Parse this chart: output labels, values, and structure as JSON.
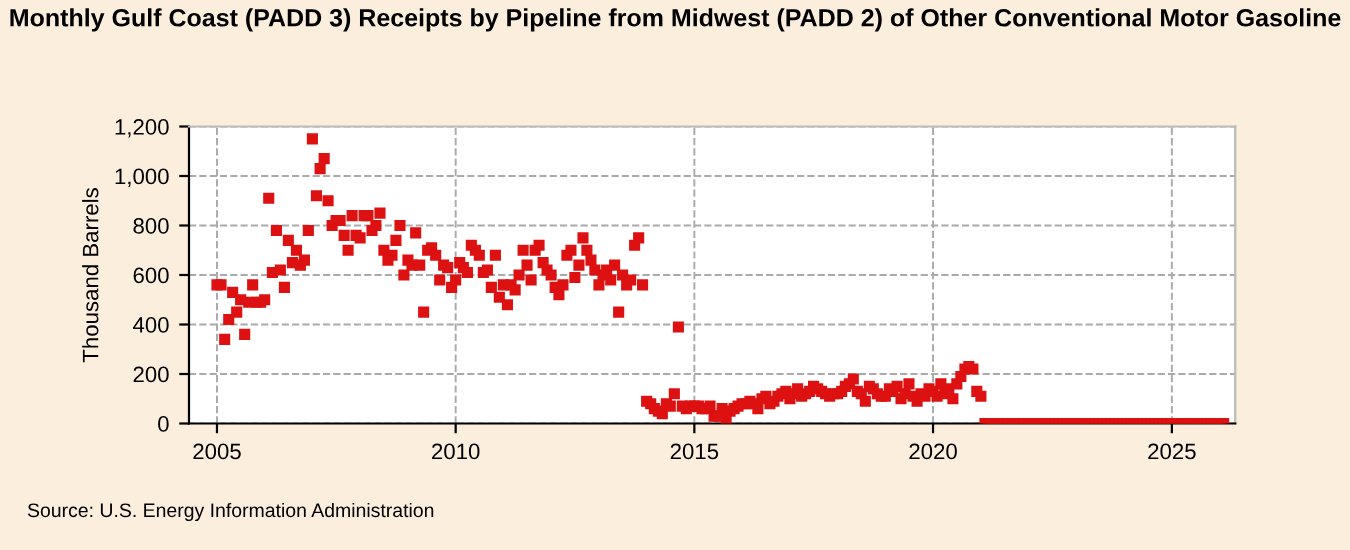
{
  "chart_data": {
    "type": "scatter",
    "title": "Monthly Gulf Coast (PADD 3) Receipts by Pipeline from Midwest (PADD 2) of Other Conventional Motor Gasoline",
    "ylabel": "Thousand Barrels",
    "annotations": [
      "Source: U.S. Energy Information Administration"
    ],
    "series": [
      {
        "color": "#dd1111",
        "x": [
          "2005-01",
          "2005-02",
          "2005-03",
          "2005-04",
          "2005-05",
          "2005-06",
          "2005-07",
          "2005-08",
          "2005-09",
          "2005-10",
          "2005-11",
          "2005-12",
          "2006-01",
          "2006-02",
          "2006-03",
          "2006-04",
          "2006-05",
          "2006-06",
          "2006-07",
          "2006-08",
          "2006-09",
          "2006-10",
          "2006-11",
          "2006-12",
          "2007-01",
          "2007-02",
          "2007-03",
          "2007-04",
          "2007-05",
          "2007-06",
          "2007-07",
          "2007-08",
          "2007-09",
          "2007-10",
          "2007-11",
          "2007-12",
          "2008-01",
          "2008-02",
          "2008-03",
          "2008-04",
          "2008-05",
          "2008-06",
          "2008-07",
          "2008-08",
          "2008-09",
          "2008-10",
          "2008-11",
          "2008-12",
          "2009-01",
          "2009-02",
          "2009-03",
          "2009-04",
          "2009-05",
          "2009-06",
          "2009-07",
          "2009-08",
          "2009-09",
          "2009-10",
          "2009-11",
          "2009-12",
          "2010-01",
          "2010-02",
          "2010-03",
          "2010-04",
          "2010-05",
          "2010-06",
          "2010-07",
          "2010-08",
          "2010-09",
          "2010-10",
          "2010-11",
          "2010-12",
          "2011-01",
          "2011-02",
          "2011-03",
          "2011-04",
          "2011-05",
          "2011-06",
          "2011-07",
          "2011-08",
          "2011-09",
          "2011-10",
          "2011-11",
          "2011-12",
          "2012-01",
          "2012-02",
          "2012-03",
          "2012-04",
          "2012-05",
          "2012-06",
          "2012-07",
          "2012-08",
          "2012-09",
          "2012-10",
          "2012-11",
          "2012-12",
          "2013-01",
          "2013-02",
          "2013-03",
          "2013-04",
          "2013-05",
          "2013-06",
          "2013-07",
          "2013-08",
          "2013-09",
          "2013-10",
          "2013-11",
          "2013-12",
          "2014-01",
          "2014-02",
          "2014-03",
          "2014-04",
          "2014-05",
          "2014-06",
          "2014-07",
          "2014-08",
          "2014-09",
          "2014-10",
          "2014-11",
          "2014-12",
          "2015-01",
          "2015-02",
          "2015-03",
          "2015-04",
          "2015-05",
          "2015-06",
          "2015-07",
          "2015-08",
          "2015-09",
          "2015-10",
          "2015-11",
          "2015-12",
          "2016-01",
          "2016-02",
          "2016-03",
          "2016-04",
          "2016-05",
          "2016-06",
          "2016-07",
          "2016-08",
          "2016-09",
          "2016-10",
          "2016-11",
          "2016-12",
          "2017-01",
          "2017-02",
          "2017-03",
          "2017-04",
          "2017-05",
          "2017-06",
          "2017-07",
          "2017-08",
          "2017-09",
          "2017-10",
          "2017-11",
          "2017-12",
          "2018-01",
          "2018-02",
          "2018-03",
          "2018-04",
          "2018-05",
          "2018-06",
          "2018-07",
          "2018-08",
          "2018-09",
          "2018-10",
          "2018-11",
          "2018-12",
          "2019-01",
          "2019-02",
          "2019-03",
          "2019-04",
          "2019-05",
          "2019-06",
          "2019-07",
          "2019-08",
          "2019-09",
          "2019-10",
          "2019-11",
          "2019-12",
          "2020-01",
          "2020-02",
          "2020-03",
          "2020-04",
          "2020-05",
          "2020-06",
          "2020-07",
          "2020-08",
          "2020-09",
          "2020-10",
          "2020-11",
          "2020-12",
          "2021-01",
          "2021-02",
          "2021-03",
          "2021-04",
          "2021-05",
          "2021-06",
          "2021-07",
          "2021-08",
          "2021-09",
          "2021-10",
          "2021-11",
          "2021-12",
          "2022-01",
          "2022-02",
          "2022-03",
          "2022-04",
          "2022-05",
          "2022-06",
          "2022-07",
          "2022-08",
          "2022-09",
          "2022-10",
          "2022-11",
          "2022-12",
          "2023-01",
          "2023-02",
          "2023-03",
          "2023-04",
          "2023-05",
          "2023-06",
          "2023-07",
          "2023-08",
          "2023-09",
          "2023-10",
          "2023-11",
          "2023-12",
          "2024-01",
          "2024-02",
          "2024-03",
          "2024-04",
          "2024-05",
          "2024-06",
          "2024-07",
          "2024-08",
          "2024-09",
          "2024-10",
          "2024-11",
          "2024-12",
          "2025-01",
          "2025-02",
          "2025-03",
          "2025-04",
          "2025-05",
          "2025-06",
          "2025-07",
          "2025-08",
          "2025-09",
          "2025-10",
          "2025-11",
          "2025-12",
          "2026-01",
          "2026-02"
        ],
        "values": [
          560,
          560,
          340,
          420,
          530,
          450,
          500,
          360,
          490,
          560,
          490,
          490,
          500,
          910,
          610,
          780,
          620,
          550,
          740,
          650,
          700,
          640,
          660,
          780,
          1150,
          920,
          1030,
          1070,
          900,
          800,
          820,
          820,
          760,
          700,
          840,
          760,
          750,
          840,
          840,
          780,
          800,
          850,
          700,
          660,
          680,
          740,
          800,
          600,
          660,
          640,
          770,
          640,
          450,
          700,
          710,
          680,
          580,
          640,
          630,
          550,
          580,
          650,
          630,
          610,
          720,
          700,
          680,
          610,
          620,
          550,
          680,
          510,
          560,
          480,
          560,
          540,
          600,
          700,
          640,
          580,
          700,
          720,
          650,
          620,
          600,
          550,
          520,
          560,
          680,
          700,
          590,
          640,
          750,
          700,
          660,
          620,
          560,
          600,
          620,
          580,
          640,
          450,
          600,
          560,
          580,
          720,
          750,
          560,
          90,
          80,
          60,
          50,
          40,
          80,
          70,
          120,
          390,
          70,
          60,
          70,
          70,
          70,
          60,
          60,
          70,
          30,
          30,
          60,
          20,
          50,
          60,
          70,
          80,
          80,
          90,
          80,
          60,
          100,
          110,
          80,
          90,
          110,
          120,
          130,
          100,
          120,
          140,
          110,
          120,
          130,
          150,
          140,
          130,
          120,
          110,
          120,
          120,
          130,
          150,
          160,
          180,
          130,
          120,
          90,
          150,
          140,
          120,
          110,
          110,
          140,
          130,
          150,
          100,
          120,
          160,
          110,
          90,
          120,
          110,
          140,
          130,
          110,
          160,
          120,
          140,
          100,
          160,
          190,
          220,
          230,
          220,
          130,
          110,
          0,
          0,
          0,
          0,
          0,
          0,
          0,
          0,
          0,
          0,
          0,
          0,
          0,
          0,
          0,
          0,
          0,
          0,
          0,
          0,
          0,
          0,
          0,
          0,
          0,
          0,
          0,
          0,
          0,
          0,
          0,
          0,
          0,
          0,
          0,
          0,
          0,
          0,
          0,
          0,
          0,
          0,
          0,
          0,
          0,
          0,
          0,
          0,
          0,
          0,
          0,
          0,
          0,
          0,
          0,
          0,
          0,
          0,
          0,
          0,
          0
        ]
      }
    ],
    "xlim": [
      "2004-06",
      "2026-05"
    ],
    "xticks": [
      "2005",
      "2010",
      "2015",
      "2020",
      "2025"
    ],
    "ylim": [
      0,
      1200
    ],
    "yticks": [
      0,
      200,
      400,
      600,
      800,
      {
        "value": 1000,
        "label": "1,000"
      },
      {
        "value": 1200,
        "label": "1,200"
      }
    ],
    "grid": true,
    "marker": "square"
  }
}
